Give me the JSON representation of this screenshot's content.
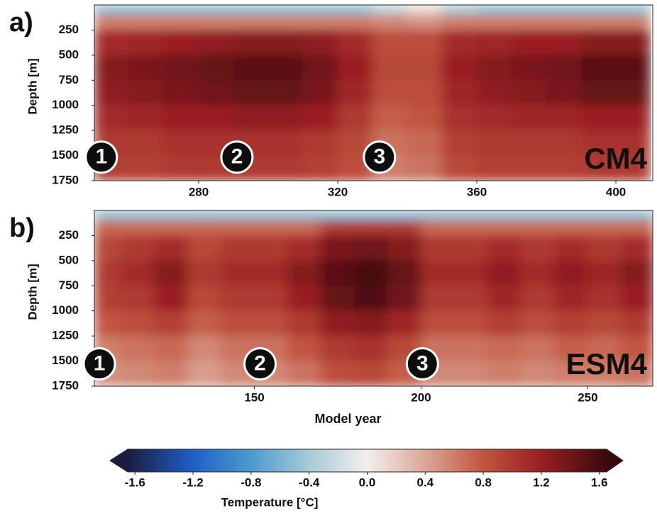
{
  "chart_data": [
    {
      "type": "heatmap",
      "label": "a)",
      "title": "CM4",
      "y_label": "Depth [m]",
      "x_edges": [
        250,
        260,
        270,
        280,
        290,
        300,
        310,
        320,
        330,
        340,
        350,
        360,
        370,
        380,
        390,
        400,
        410
      ],
      "y_edges": [
        0,
        100,
        250,
        500,
        750,
        1000,
        1250,
        1500,
        1750
      ],
      "values": [
        [
          -0.5,
          -0.5,
          -0.5,
          -0.5,
          -0.5,
          -0.5,
          -0.5,
          -0.5,
          -0.3,
          0.1,
          -0.4,
          -0.5,
          -0.5,
          -0.5,
          -0.5,
          -0.5
        ],
        [
          0.6,
          0.6,
          0.6,
          0.6,
          0.6,
          0.6,
          0.6,
          0.6,
          0.55,
          0.5,
          0.6,
          0.6,
          0.6,
          0.6,
          0.6,
          0.6
        ],
        [
          1.1,
          1.15,
          1.2,
          1.25,
          1.3,
          1.3,
          1.25,
          1.1,
          0.85,
          0.85,
          1.1,
          1.15,
          1.2,
          1.2,
          1.3,
          1.3
        ],
        [
          1.3,
          1.35,
          1.4,
          1.45,
          1.5,
          1.5,
          1.4,
          1.2,
          0.9,
          0.9,
          1.2,
          1.3,
          1.35,
          1.4,
          1.5,
          1.5
        ],
        [
          1.25,
          1.3,
          1.35,
          1.4,
          1.45,
          1.45,
          1.35,
          1.15,
          0.85,
          0.85,
          1.15,
          1.25,
          1.3,
          1.35,
          1.45,
          1.45
        ],
        [
          1.1,
          1.15,
          1.2,
          1.2,
          1.25,
          1.25,
          1.2,
          1.0,
          0.75,
          0.8,
          1.05,
          1.1,
          1.15,
          1.15,
          1.2,
          1.2
        ],
        [
          1.0,
          1.0,
          1.05,
          1.05,
          1.05,
          1.05,
          1.0,
          0.9,
          0.65,
          0.7,
          0.95,
          1.0,
          1.0,
          1.0,
          1.05,
          1.05
        ],
        [
          0.95,
          0.95,
          1.0,
          1.0,
          1.0,
          1.0,
          0.95,
          0.85,
          0.6,
          0.65,
          0.9,
          0.95,
          0.95,
          0.95,
          1.0,
          1.0
        ]
      ],
      "xlim": [
        250,
        410.6
      ],
      "ylim": [
        0,
        1750
      ],
      "y_inverted": true,
      "xticks": [
        280,
        320,
        360,
        400
      ],
      "yticks": [
        250,
        500,
        750,
        1000,
        1250,
        1500,
        1750
      ],
      "annotations": [
        {
          "text": "1",
          "x": 252,
          "y": 1515
        },
        {
          "text": "2",
          "x": 291,
          "y": 1515
        },
        {
          "text": "3",
          "x": 332,
          "y": 1515
        }
      ]
    },
    {
      "type": "heatmap",
      "label": "b)",
      "title": "ESM4",
      "y_label": "Depth [m]",
      "x_label": "Model year",
      "x_edges": [
        102,
        110,
        120,
        130,
        140,
        150,
        160,
        170,
        180,
        190,
        200,
        210,
        220,
        230,
        240,
        250,
        260,
        270
      ],
      "y_edges": [
        0,
        100,
        250,
        500,
        750,
        1000,
        1250,
        1500,
        1750
      ],
      "values": [
        [
          -0.5,
          -0.5,
          -0.5,
          -0.5,
          -0.5,
          -0.5,
          -0.5,
          -0.5,
          -0.5,
          -0.5,
          -0.5,
          -0.5,
          -0.5,
          -0.5,
          -0.5,
          -0.5,
          -0.5
        ],
        [
          0.7,
          0.7,
          0.7,
          0.7,
          0.7,
          0.7,
          0.7,
          1.0,
          1.0,
          1.0,
          0.7,
          0.7,
          0.7,
          0.7,
          0.7,
          0.7,
          0.7
        ],
        [
          0.9,
          1.0,
          1.1,
          0.9,
          1.0,
          1.0,
          1.1,
          1.35,
          1.4,
          1.3,
          1.0,
          1.0,
          1.1,
          1.0,
          1.1,
          1.0,
          1.1
        ],
        [
          1.0,
          1.1,
          1.3,
          1.0,
          1.1,
          1.1,
          1.3,
          1.5,
          1.6,
          1.45,
          1.1,
          1.1,
          1.25,
          1.1,
          1.25,
          1.15,
          1.3
        ],
        [
          0.95,
          1.0,
          1.2,
          0.9,
          1.0,
          1.0,
          1.2,
          1.45,
          1.55,
          1.4,
          1.0,
          1.0,
          1.15,
          1.0,
          1.15,
          1.05,
          1.2
        ],
        [
          0.8,
          0.85,
          0.95,
          0.75,
          0.85,
          0.85,
          1.0,
          1.25,
          1.3,
          1.15,
          0.85,
          0.85,
          0.95,
          0.85,
          0.95,
          0.9,
          1.0
        ],
        [
          0.6,
          0.65,
          0.7,
          0.55,
          0.65,
          0.65,
          0.8,
          1.0,
          1.05,
          0.9,
          0.65,
          0.65,
          0.7,
          0.65,
          0.75,
          0.7,
          0.8
        ],
        [
          0.5,
          0.55,
          0.6,
          0.45,
          0.55,
          0.55,
          0.65,
          0.85,
          0.9,
          0.75,
          0.55,
          0.55,
          0.6,
          0.55,
          0.6,
          0.6,
          0.65
        ]
      ],
      "xlim": [
        102,
        269.5
      ],
      "ylim": [
        0,
        1750
      ],
      "y_inverted": true,
      "xticks": [
        150,
        200,
        250
      ],
      "yticks": [
        250,
        500,
        750,
        1000,
        1250,
        1500,
        1750
      ],
      "annotations": [
        {
          "text": "1",
          "x": 103.5,
          "y": 1528
        },
        {
          "text": "2",
          "x": 151.7,
          "y": 1528
        },
        {
          "text": "3",
          "x": 200.4,
          "y": 1528
        }
      ]
    }
  ],
  "colorbar": {
    "title": "Temperature [°C]",
    "clim": [
      -1.65,
      1.65
    ],
    "extend": "both",
    "ticks": [
      -1.6,
      -1.2,
      -0.8,
      -0.4,
      {
        "value": 0,
        "label": "0.0"
      },
      0.4,
      0.8,
      1.2,
      1.6
    ],
    "colormap": {
      "values": [
        -1.65,
        -1.2,
        -0.8,
        -0.4,
        0,
        0.4,
        0.8,
        1.2,
        1.65
      ],
      "colors": [
        "#1b1c40",
        "#1f5fc6",
        "#4b9bcf",
        "#a7cbd8",
        "#f3efed",
        "#dca697",
        "#c1553f",
        "#9a1f23",
        "#3a090e"
      ]
    }
  }
}
